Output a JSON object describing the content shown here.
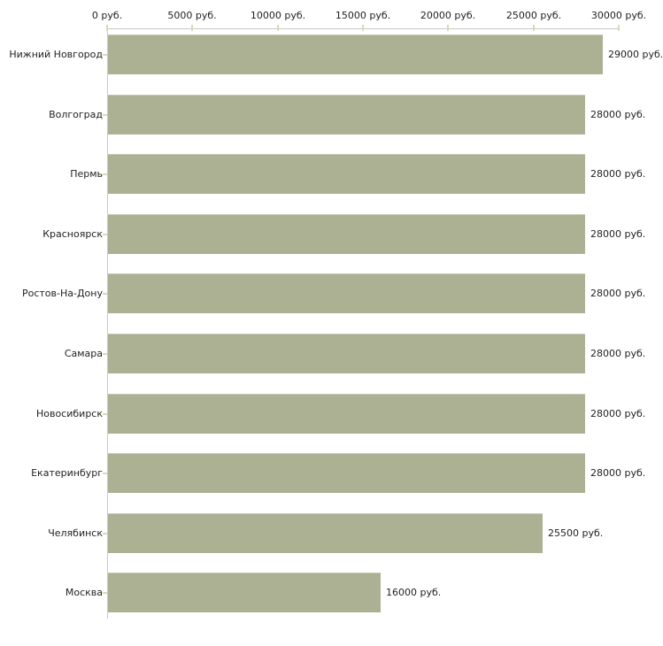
{
  "chart_data": {
    "type": "bar",
    "orientation": "horizontal",
    "title": "",
    "xlabel": "",
    "ylabel": "",
    "unit": "руб.",
    "xlim": [
      0,
      30000
    ],
    "grid": false,
    "legend": false,
    "x_ticks": [
      {
        "value": 0,
        "label": "0 руб."
      },
      {
        "value": 5000,
        "label": "5000 руб."
      },
      {
        "value": 10000,
        "label": "10000 руб."
      },
      {
        "value": 15000,
        "label": "15000 руб."
      },
      {
        "value": 20000,
        "label": "20000 руб."
      },
      {
        "value": 25000,
        "label": "25000 руб."
      },
      {
        "value": 30000,
        "label": "30000 руб."
      }
    ],
    "rows": [
      {
        "category": "Нижний Новгород",
        "value": 29000,
        "value_label": "29000 руб."
      },
      {
        "category": "Волгоград",
        "value": 28000,
        "value_label": "28000 руб."
      },
      {
        "category": "Пермь",
        "value": 28000,
        "value_label": "28000 руб."
      },
      {
        "category": "Красноярск",
        "value": 28000,
        "value_label": "28000 руб."
      },
      {
        "category": "Ростов-На-Дону",
        "value": 28000,
        "value_label": "28000 руб."
      },
      {
        "category": "Самара",
        "value": 28000,
        "value_label": "28000 руб."
      },
      {
        "category": "Новосибирск",
        "value": 28000,
        "value_label": "28000 руб."
      },
      {
        "category": "Екатеринбург",
        "value": 28000,
        "value_label": "28000 руб."
      },
      {
        "category": "Челябинск",
        "value": 25500,
        "value_label": "25500 руб."
      },
      {
        "category": "Москва",
        "value": 16000,
        "value_label": "16000 руб."
      }
    ],
    "colors": {
      "bar": "#acb194",
      "bar_top_edge": "#c6c9b2",
      "axis": "#c8c8c8",
      "tick": "#d8d9ba",
      "text": "#1f1f1f",
      "background": "#ffffff"
    }
  }
}
